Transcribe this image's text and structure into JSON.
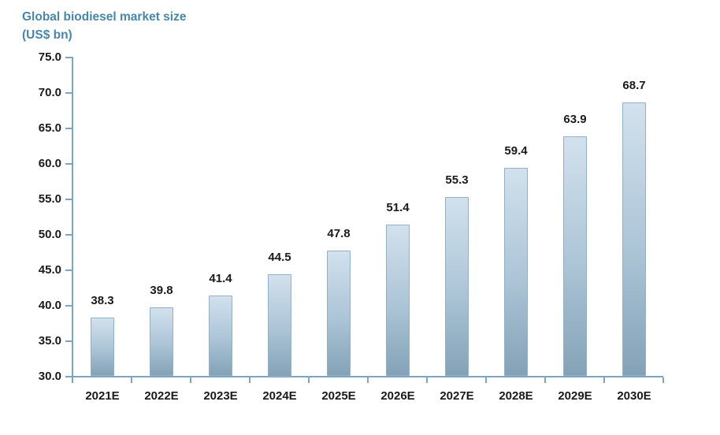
{
  "title": {
    "line1": "Global biodiesel market size",
    "line2": "(US$ bn)"
  },
  "colors": {
    "title": "#4a86a8",
    "text": "#1a1a1a",
    "axis": "#7ea4bf",
    "bar_border": "#93b1c6",
    "bar_top": "#d2e1ed",
    "bar_bottom": "#84a2b7"
  },
  "chart_data": {
    "type": "bar",
    "title": "Global biodiesel market size",
    "unit_label": "(US$ bn)",
    "categories": [
      "2021E",
      "2022E",
      "2023E",
      "2024E",
      "2025E",
      "2026E",
      "2027E",
      "2028E",
      "2029E",
      "2030E"
    ],
    "values": [
      38.3,
      39.8,
      41.4,
      44.5,
      47.8,
      51.4,
      55.3,
      59.4,
      63.9,
      68.7
    ],
    "value_labels": [
      "38.3",
      "39.8",
      "41.4",
      "44.5",
      "47.8",
      "51.4",
      "55.3",
      "59.4",
      "63.9",
      "68.7"
    ],
    "ylim": [
      30,
      75
    ],
    "ytick_step": 5,
    "yticks": [
      "75.0",
      "70.0",
      "65.0",
      "60.0",
      "55.0",
      "50.0",
      "45.0",
      "40.0",
      "35.0",
      "30.0"
    ],
    "xlabel": "",
    "ylabel": "Global biodiesel market size (US$ bn)",
    "grid": false,
    "legend": "none",
    "data_labels": "above bars"
  }
}
